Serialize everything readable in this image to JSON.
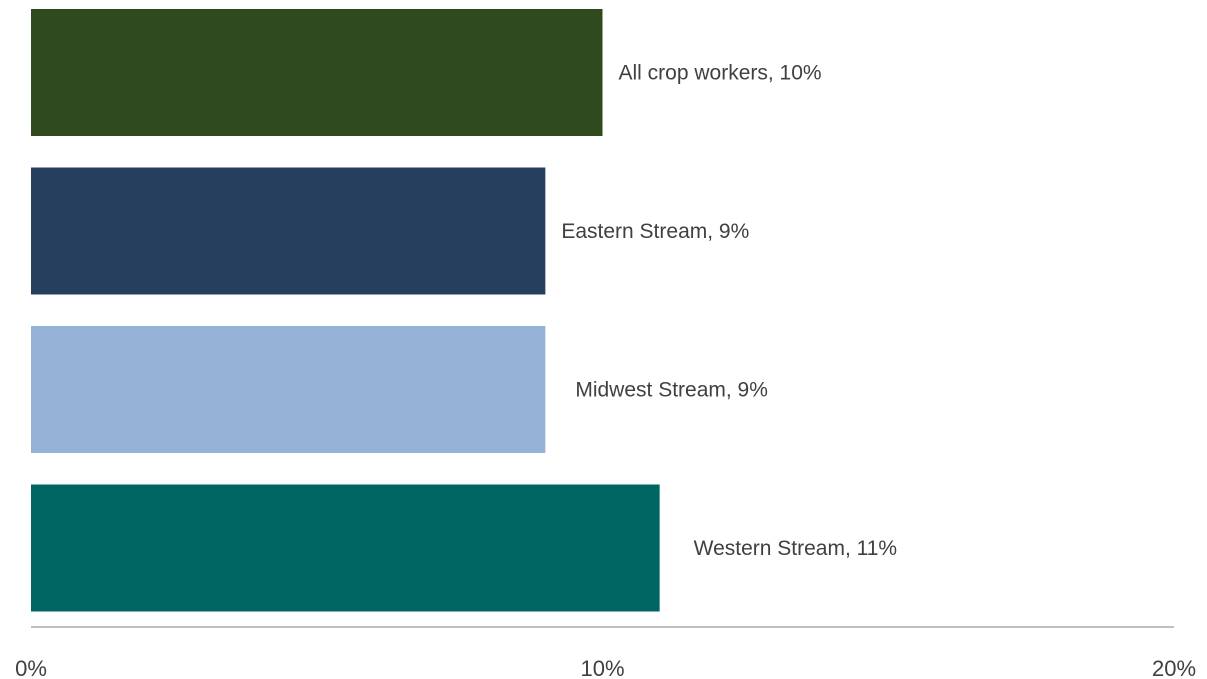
{
  "chart_data": {
    "type": "bar",
    "orientation": "horizontal",
    "title": "",
    "xlabel": "",
    "ylabel": "",
    "xlim": [
      0,
      20
    ],
    "x_ticks": [
      {
        "value": 0,
        "label": "0%"
      },
      {
        "value": 10,
        "label": "10%"
      },
      {
        "value": 20,
        "label": "20%"
      }
    ],
    "grid": false,
    "bars": [
      {
        "label": "All crop workers, 10%",
        "value": 10,
        "color": "#2f4a1d"
      },
      {
        "label": "Eastern Stream, 9%",
        "value": 9,
        "color": "#263f5f"
      },
      {
        "label": "Midwest Stream, 9%",
        "value": 9,
        "color": "#95b3d7"
      },
      {
        "label": "Western Stream, 11%",
        "value": 11,
        "color": "#006663"
      }
    ],
    "axis_color": "#bfbfbf"
  }
}
